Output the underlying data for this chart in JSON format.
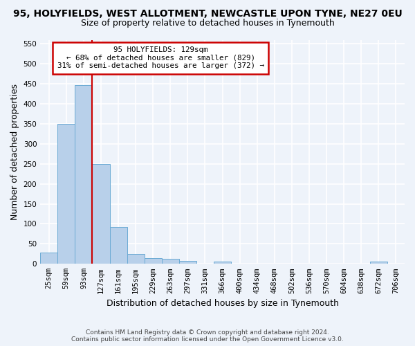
{
  "title": "95, HOLYFIELDS, WEST ALLOTMENT, NEWCASTLE UPON TYNE, NE27 0EU",
  "subtitle": "Size of property relative to detached houses in Tynemouth",
  "xlabel": "Distribution of detached houses by size in Tynemouth",
  "ylabel": "Number of detached properties",
  "bar_labels": [
    "25sqm",
    "59sqm",
    "93sqm",
    "127sqm",
    "161sqm",
    "195sqm",
    "229sqm",
    "263sqm",
    "297sqm",
    "331sqm",
    "366sqm",
    "400sqm",
    "434sqm",
    "468sqm",
    "502sqm",
    "536sqm",
    "570sqm",
    "604sqm",
    "638sqm",
    "672sqm",
    "706sqm"
  ],
  "bar_values": [
    28,
    350,
    447,
    250,
    93,
    25,
    14,
    12,
    7,
    0,
    6,
    0,
    0,
    0,
    0,
    0,
    0,
    0,
    0,
    6,
    0
  ],
  "bar_color": "#b8d0ea",
  "bar_edge_color": "#6aaad4",
  "annotation_text_line1": "95 HOLYFIELDS: 129sqm",
  "annotation_text_line2": "← 68% of detached houses are smaller (829)",
  "annotation_text_line3": "31% of semi-detached houses are larger (372) →",
  "annotation_box_color": "#ffffff",
  "annotation_box_edge_color": "#cc0000",
  "vline_color": "#cc0000",
  "vline_x": 2.5,
  "ylim": [
    0,
    560
  ],
  "yticks": [
    0,
    50,
    100,
    150,
    200,
    250,
    300,
    350,
    400,
    450,
    500,
    550
  ],
  "footer_line1": "Contains HM Land Registry data © Crown copyright and database right 2024.",
  "footer_line2": "Contains public sector information licensed under the Open Government Licence v3.0.",
  "bg_color": "#eef3fa",
  "grid_color": "#ffffff",
  "title_fontsize": 10,
  "subtitle_fontsize": 9,
  "tick_fontsize": 7.5,
  "ylabel_fontsize": 9,
  "xlabel_fontsize": 9,
  "footer_fontsize": 6.5
}
